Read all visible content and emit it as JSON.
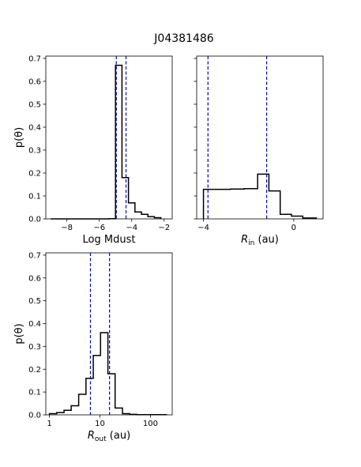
{
  "figure": {
    "title": "J04381486"
  },
  "chart_data": [
    {
      "type": "histogram",
      "xlabel": "Log Mdust",
      "ylabel": "p(θ)",
      "xlim": [
        -9.3,
        -1.5
      ],
      "ylim": [
        0,
        0.71
      ],
      "xticks": [
        -8,
        -6,
        -4,
        -2
      ],
      "xtick_labels": [
        "−8",
        "−6",
        "−4",
        "−2"
      ],
      "yticks": [
        0.0,
        0.1,
        0.2,
        0.3,
        0.4,
        0.5,
        0.6,
        0.7
      ],
      "ytick_labels": [
        "0.0",
        "0.1",
        "0.2",
        "0.3",
        "0.4",
        "0.5",
        "0.6",
        "0.7"
      ],
      "bin_edges": [
        -9.0,
        -8.6,
        -8.2,
        -7.8,
        -7.4,
        -7.0,
        -6.6,
        -6.2,
        -5.8,
        -5.4,
        -5.0,
        -4.6,
        -4.2,
        -3.8,
        -3.4,
        -3.0,
        -2.6,
        -2.2
      ],
      "values": [
        0,
        0,
        0,
        0,
        0,
        0,
        0,
        0,
        0,
        0.001,
        0.67,
        0.18,
        0.07,
        0.03,
        0.02,
        0.01,
        0.005
      ],
      "markers": [
        -4.95,
        -4.35
      ],
      "line_color": "#000000",
      "marker_color": "#0000cc"
    },
    {
      "type": "histogram",
      "xlabel": "R_in (au)",
      "xlabel_main": "R",
      "xlabel_sub": "in",
      "xlabel_unit": " (au)",
      "ylabel": "",
      "xlim": [
        -4.3,
        1.3
      ],
      "ylim": [
        0,
        0.71
      ],
      "xticks": [
        -4,
        0
      ],
      "xtick_labels": [
        "−4",
        "0"
      ],
      "yticks": [
        0.0,
        0.1,
        0.2,
        0.3,
        0.4,
        0.5,
        0.6,
        0.7
      ],
      "bin_edges": [
        -4.0,
        -3.4,
        -2.8,
        -2.2,
        -1.6,
        -1.1,
        -0.6,
        -0.1,
        0.4,
        1.0
      ],
      "values": [
        0.129,
        0.129,
        0.13,
        0.132,
        0.195,
        0.122,
        0.02,
        0.012,
        0.004
      ],
      "markers": [
        -3.8,
        -1.2
      ],
      "line_color": "#000000",
      "marker_color": "#0000cc"
    },
    {
      "type": "histogram",
      "xlabel": "R_out (au)",
      "xlabel_main": "R",
      "xlabel_sub": "out",
      "xlabel_unit": " (au)",
      "ylabel": "p(θ)",
      "xscale": "log",
      "xlim": [
        0.85,
        270
      ],
      "ylim": [
        0,
        0.71
      ],
      "xticks": [
        1,
        10,
        100
      ],
      "xtick_labels": [
        "1",
        "10",
        "100"
      ],
      "yticks": [
        0.0,
        0.1,
        0.2,
        0.3,
        0.4,
        0.5,
        0.6,
        0.7
      ],
      "ytick_labels": [
        "0.0",
        "0.1",
        "0.2",
        "0.3",
        "0.4",
        "0.5",
        "0.6",
        "0.7"
      ],
      "bin_edges": [
        1.0,
        1.4,
        1.95,
        2.7,
        3.8,
        5.3,
        7.4,
        10.3,
        14.4,
        20,
        28,
        39,
        54,
        76,
        106,
        148,
        207
      ],
      "values": [
        0.005,
        0.01,
        0.02,
        0.04,
        0.09,
        0.16,
        0.26,
        0.36,
        0.18,
        0.03,
        0.005,
        0.002,
        0.001,
        0.001,
        0.001,
        0.001
      ],
      "markers": [
        6.5,
        15.5
      ],
      "line_color": "#000000",
      "marker_color": "#0000cc"
    }
  ]
}
